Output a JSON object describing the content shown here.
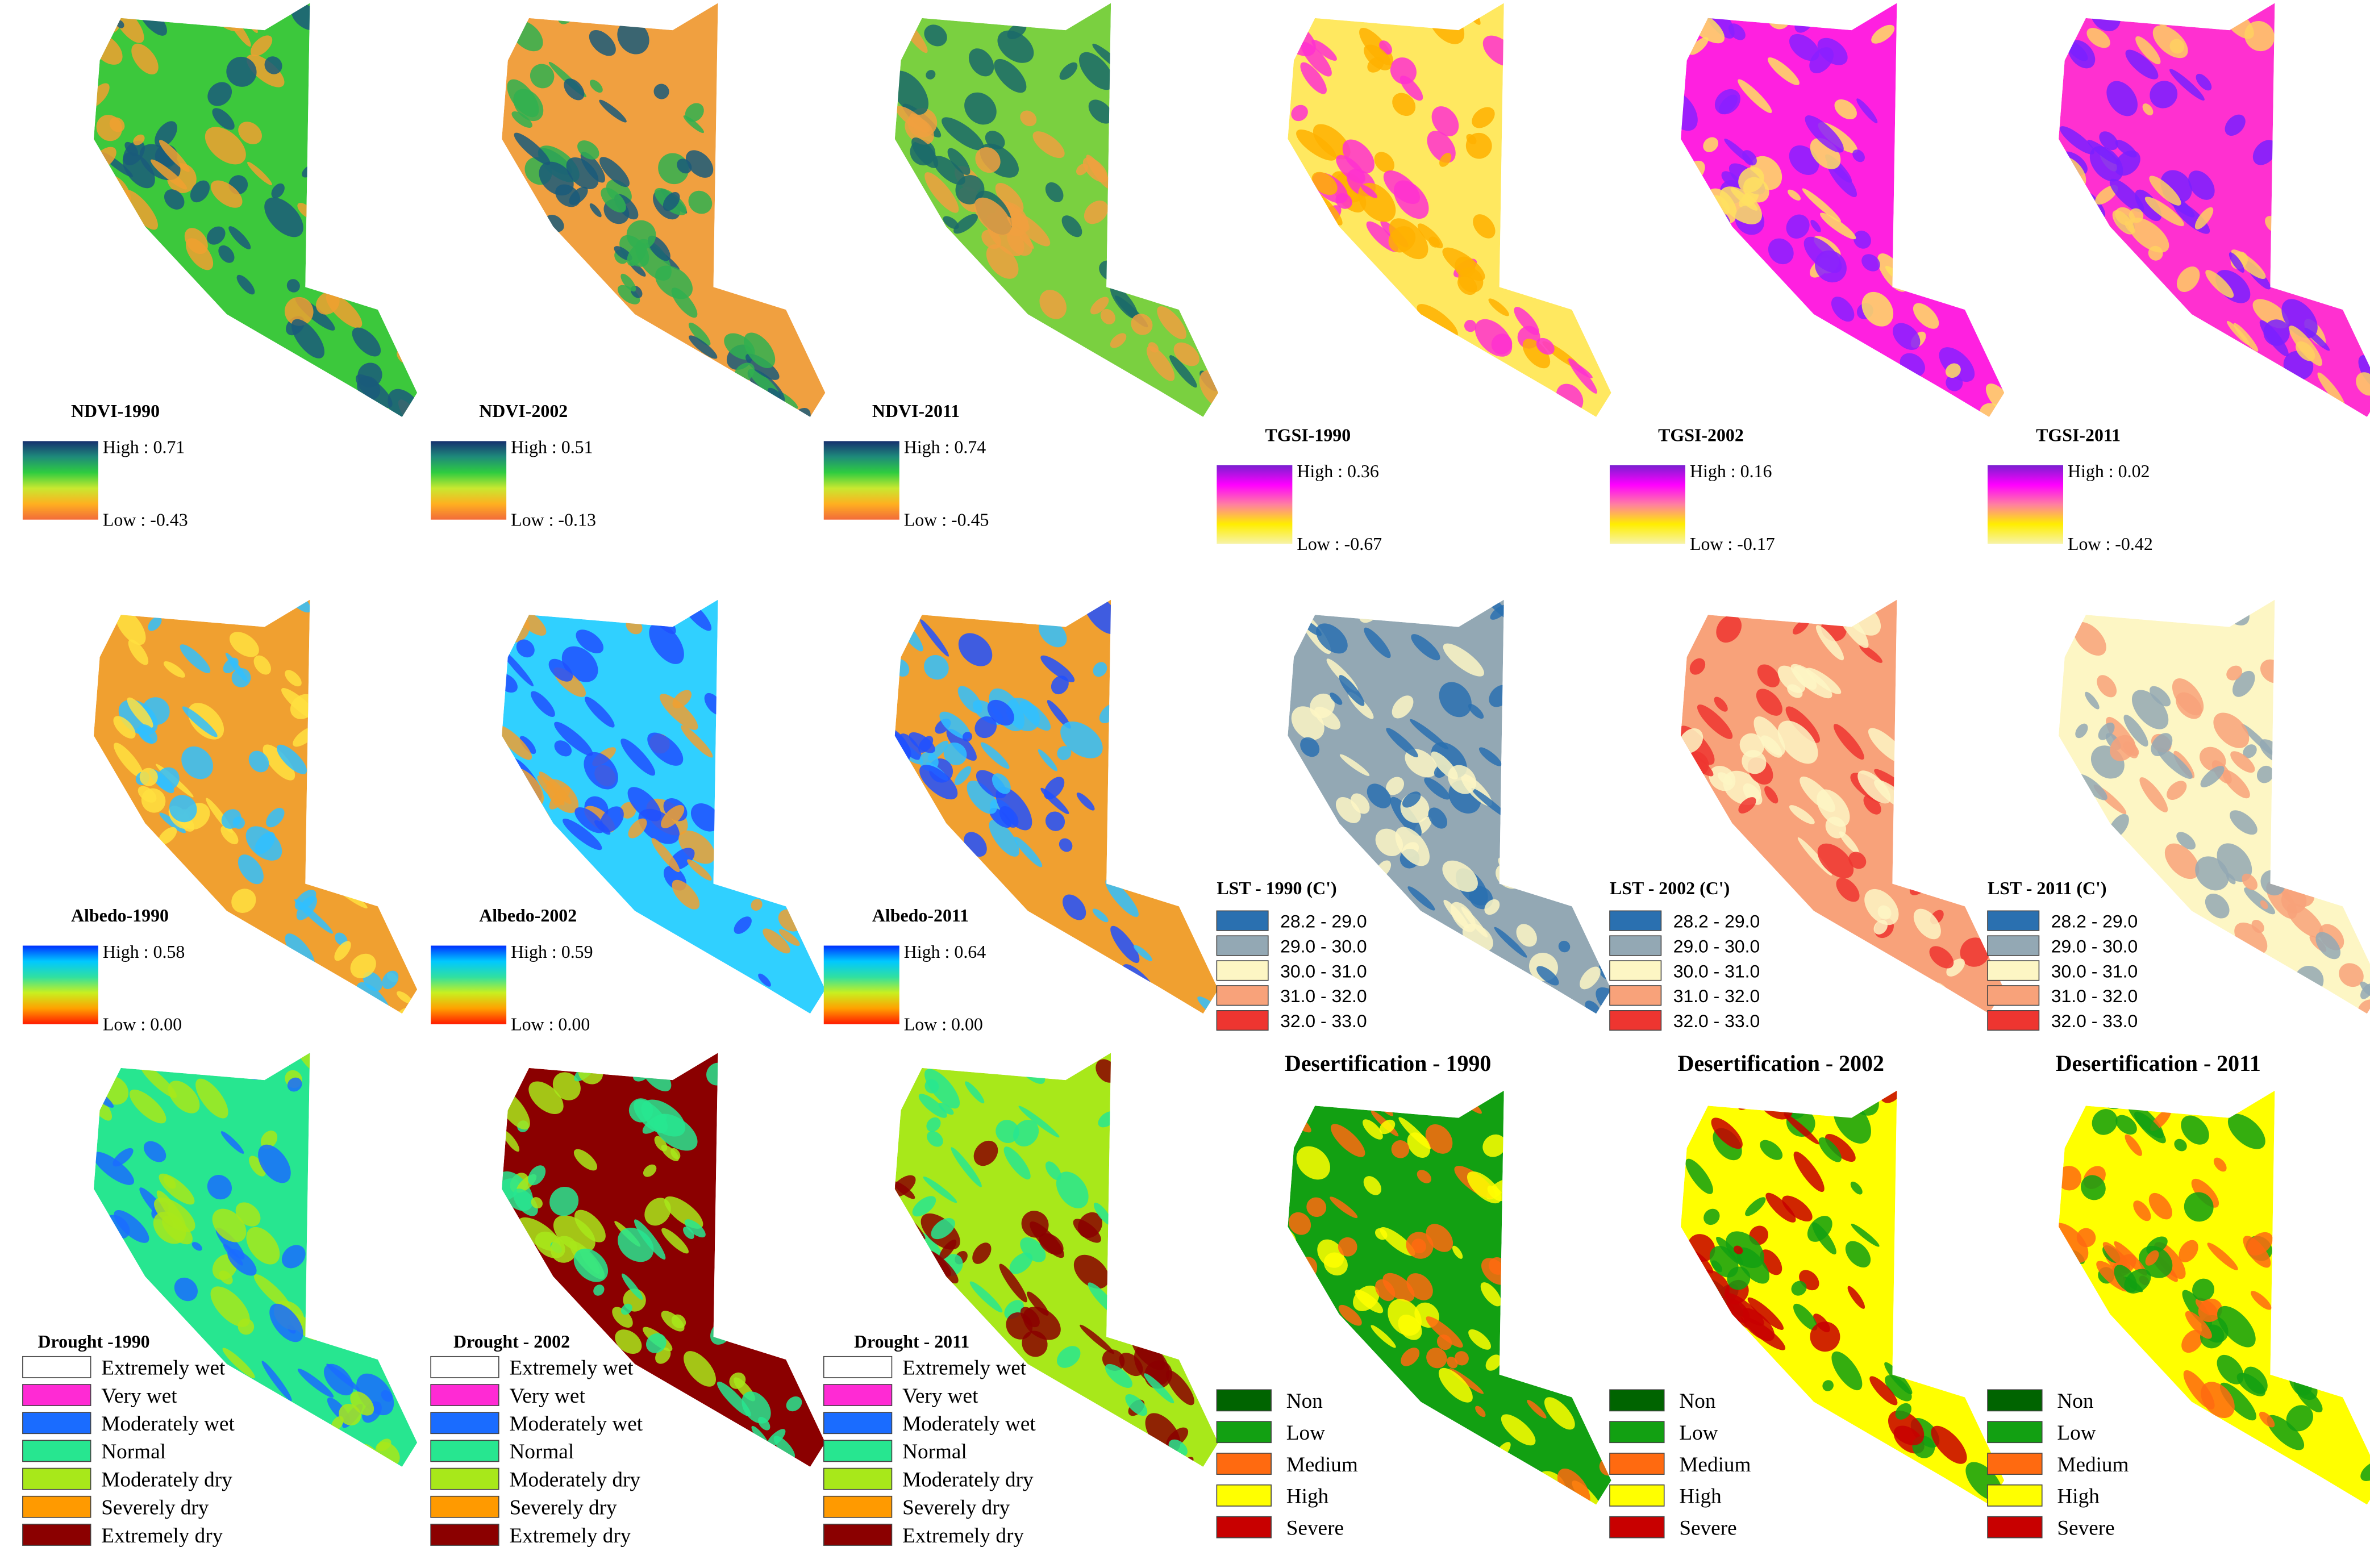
{
  "rows": [
    [
      {
        "title": "NDVI-1990",
        "high": "High : 0.71",
        "low": "Low : -0.43"
      },
      {
        "title": "NDVI-2002",
        "high": "High : 0.51",
        "low": "Low : -0.13"
      },
      {
        "title": "NDVI-2011",
        "high": "High : 0.74",
        "low": "Low : -0.45"
      },
      {
        "title": "TGSI-1990",
        "high": "High : 0.36",
        "low": "Low : -0.67"
      },
      {
        "title": "TGSI-2002",
        "high": "High : 0.16",
        "low": "Low : -0.17"
      },
      {
        "title": "TGSI-2011",
        "high": "High : 0.02",
        "low": "Low : -0.42"
      }
    ],
    [
      {
        "title": "Albedo-1990",
        "high": "High : 0.58",
        "low": "Low : 0.00"
      },
      {
        "title": "Albedo-2002",
        "high": "High : 0.59",
        "low": "Low : 0.00"
      },
      {
        "title": "Albedo-2011",
        "high": "High : 0.64",
        "low": "Low : 0.00"
      },
      {
        "title": "LST - 1990 (C')",
        "classes": [
          "28.2 - 29.0",
          "29.0 - 30.0",
          "30.0 - 31.0",
          "31.0 - 32.0",
          "32.0 - 33.0"
        ]
      },
      {
        "title": "LST - 2002 (C')",
        "classes": [
          "28.2 - 29.0",
          "29.0 - 30.0",
          "30.0 - 31.0",
          "31.0 - 32.0",
          "32.0 - 33.0"
        ]
      },
      {
        "title": "LST - 2011 (C')",
        "classes": [
          "28.2 - 29.0",
          "29.0 - 30.0",
          "30.0 - 31.0",
          "31.0 - 32.0",
          "32.0 - 33.0"
        ]
      }
    ],
    [
      {
        "title": "Drought -1990",
        "classes": [
          "Extremely wet",
          "Very wet",
          "Moderately wet",
          "Normal",
          "Moderately dry",
          "Severely dry",
          "Extremely dry"
        ]
      },
      {
        "title": "Drought - 2002",
        "classes": [
          "Extremely wet",
          "Very wet",
          "Moderately wet",
          "Normal",
          "Moderately dry",
          "Severely dry",
          "Extremely dry"
        ]
      },
      {
        "title": "Drought - 2011",
        "classes": [
          "Extremely wet",
          "Very wet",
          "Moderately wet",
          "Normal",
          "Moderately dry",
          "Severely dry",
          "Extremely dry"
        ]
      },
      {
        "title": "Desertification - 1990",
        "classes": [
          "Non",
          "Low",
          "Medium",
          "High",
          "Severe"
        ]
      },
      {
        "title": "Desertification - 2002",
        "classes": [
          "Non",
          "Low",
          "Medium",
          "High",
          "Severe"
        ]
      },
      {
        "title": "Desertification - 2011",
        "classes": [
          "Non",
          "Low",
          "Medium",
          "High",
          "Severe"
        ]
      }
    ]
  ]
}
